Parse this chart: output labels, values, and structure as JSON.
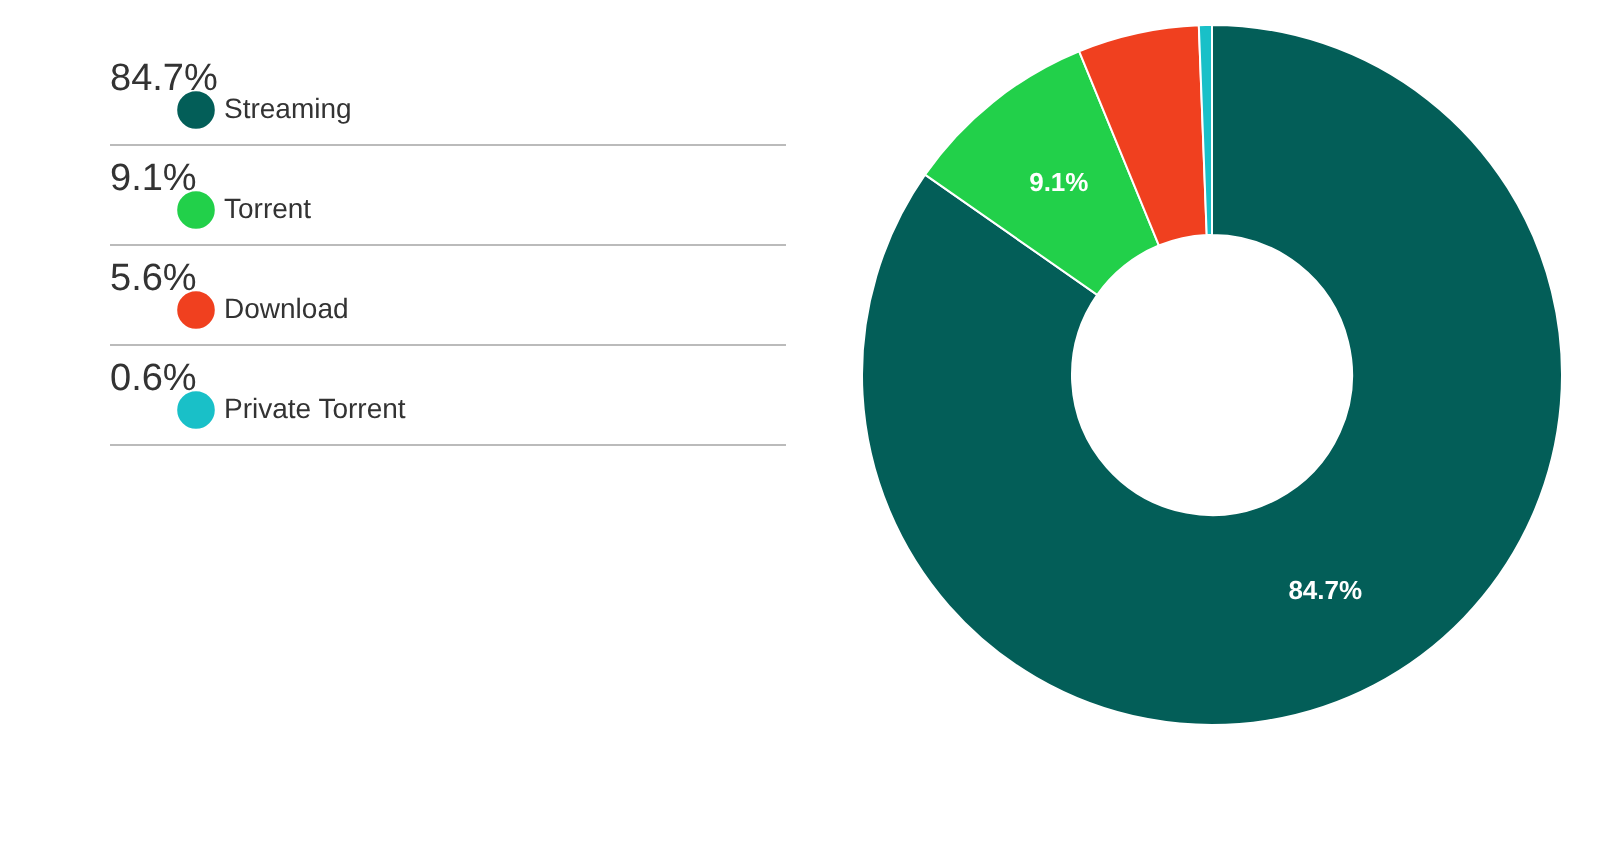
{
  "chart_data": {
    "type": "donut",
    "categories": [
      "Streaming",
      "Torrent",
      "Download",
      "Private Torrent"
    ],
    "values": [
      84.7,
      9.1,
      5.6,
      0.6
    ],
    "colors": [
      "#035e58",
      "#22d04a",
      "#f0401f",
      "#19c0c8"
    ],
    "value_labels": [
      "84.7%",
      "9.1%",
      "5.6%",
      "0.6%"
    ],
    "legend": "left"
  }
}
